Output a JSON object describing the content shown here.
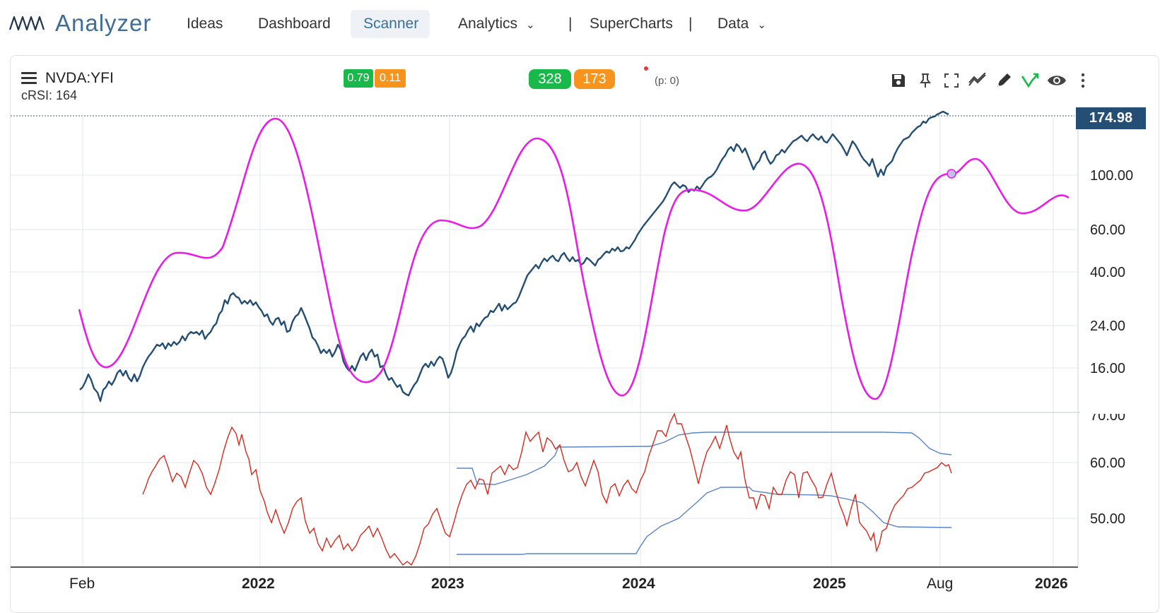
{
  "app": {
    "name": "Analyzer"
  },
  "nav": {
    "ideas": "Ideas",
    "dashboard": "Dashboard",
    "scanner": "Scanner",
    "analytics": "Analytics",
    "sep1": "|",
    "supercharts": "SuperCharts",
    "sep2": "|",
    "data": "Data"
  },
  "chart_header": {
    "symbol": "NVDA:YFI",
    "indicator": "cRSI: 164",
    "badge_green": "0.79",
    "badge_orange": "0.11",
    "pill_green": "328",
    "pill_orange": "173",
    "p_count": "(p: 0)"
  },
  "toolbar": [
    "save-icon",
    "pin-icon",
    "fullscreen-icon",
    "trend-icon",
    "draw-icon",
    "signal-icon",
    "eye-icon",
    "more-icon"
  ],
  "colors": {
    "accent": "#3f6e98",
    "price": "#244e73",
    "cycle": "#e81ce8",
    "rsi": "#d42a1f",
    "bands": "#5a84c8",
    "green": "#19b84a",
    "orange": "#f7941d",
    "price_tag": "#244e73"
  },
  "price_axis": {
    "last_price": "174.98",
    "labels": [
      "100.00",
      "60.00",
      "40.00",
      "24.00",
      "16.00"
    ]
  },
  "rsi_axis": {
    "labels": [
      "70.00",
      "60.00",
      "50.00"
    ]
  },
  "x_axis": {
    "labels": [
      {
        "t": "Feb",
        "bold": false
      },
      {
        "t": "2022",
        "bold": true
      },
      {
        "t": "2023",
        "bold": true
      },
      {
        "t": "2024",
        "bold": true
      },
      {
        "t": "2025",
        "bold": true
      },
      {
        "t": "Aug",
        "bold": false
      },
      {
        "t": "2026",
        "bold": true
      }
    ]
  }
}
